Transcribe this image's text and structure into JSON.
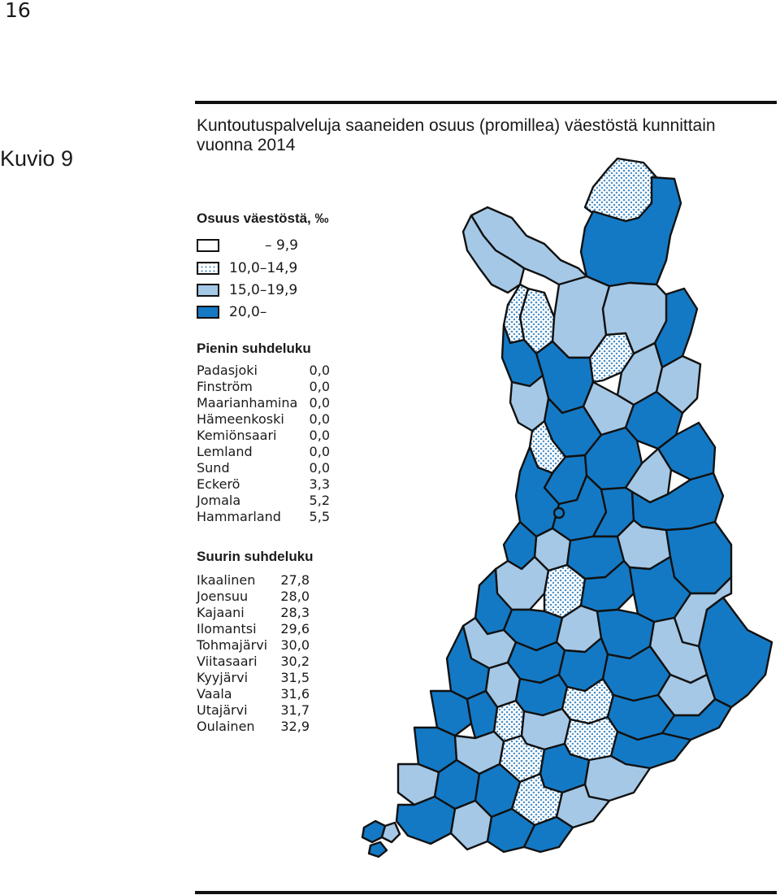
{
  "page": {
    "number": "16"
  },
  "figure": {
    "label": "Kuvio 9",
    "title_line1": "Kuntoutuspalveluja saaneiden osuus (promillea) väestöstä kunnittain",
    "title_line2": "vuonna 2014"
  },
  "legend": {
    "title": "Osuus väestöstä, ‰",
    "classes": [
      {
        "label": "– 9,9",
        "fill": "white"
      },
      {
        "label": "10,0–14,9",
        "fill": "dotted"
      },
      {
        "label": "15,0–19,9",
        "fill": "#a5c8e6"
      },
      {
        "label": "20,0–",
        "fill": "#1479c4"
      }
    ],
    "colors": {
      "white": "#ffffff",
      "dotted_bg": "#ffffff",
      "dotted_dot": "#4a90c8",
      "light_blue": "#a5c8e6",
      "dark_blue": "#1479c4",
      "border": "#111111"
    }
  },
  "lowest": {
    "title": "Pienin suhdeluku",
    "rows": [
      {
        "name": "Padasjoki",
        "value": "0,0"
      },
      {
        "name": "Finström",
        "value": "0,0"
      },
      {
        "name": "Maarianhamina",
        "value": "0,0"
      },
      {
        "name": "Hämeenkoski",
        "value": "0,0"
      },
      {
        "name": "Kemiönsaari",
        "value": "0,0"
      },
      {
        "name": "Lemland",
        "value": "0,0"
      },
      {
        "name": "Sund",
        "value": "0,0"
      },
      {
        "name": "Eckerö",
        "value": "3,3"
      },
      {
        "name": "Jomala",
        "value": "5,2"
      },
      {
        "name": "Hammarland",
        "value": "5,5"
      }
    ]
  },
  "highest": {
    "title": "Suurin suhdeluku",
    "rows": [
      {
        "name": "Ikaalinen",
        "value": "27,8"
      },
      {
        "name": "Joensuu",
        "value": "28,0"
      },
      {
        "name": "Kajaani",
        "value": "28,3"
      },
      {
        "name": "Ilomantsi",
        "value": "29,6"
      },
      {
        "name": "Tohmajärvi",
        "value": "30,0"
      },
      {
        "name": "Viitasaari",
        "value": "30,2"
      },
      {
        "name": "Kyyjärvi",
        "value": "31,5"
      },
      {
        "name": "Vaala",
        "value": "31,6"
      },
      {
        "name": "Utajärvi",
        "value": "31,7"
      },
      {
        "name": "Oulainen",
        "value": "32,9"
      }
    ]
  }
}
